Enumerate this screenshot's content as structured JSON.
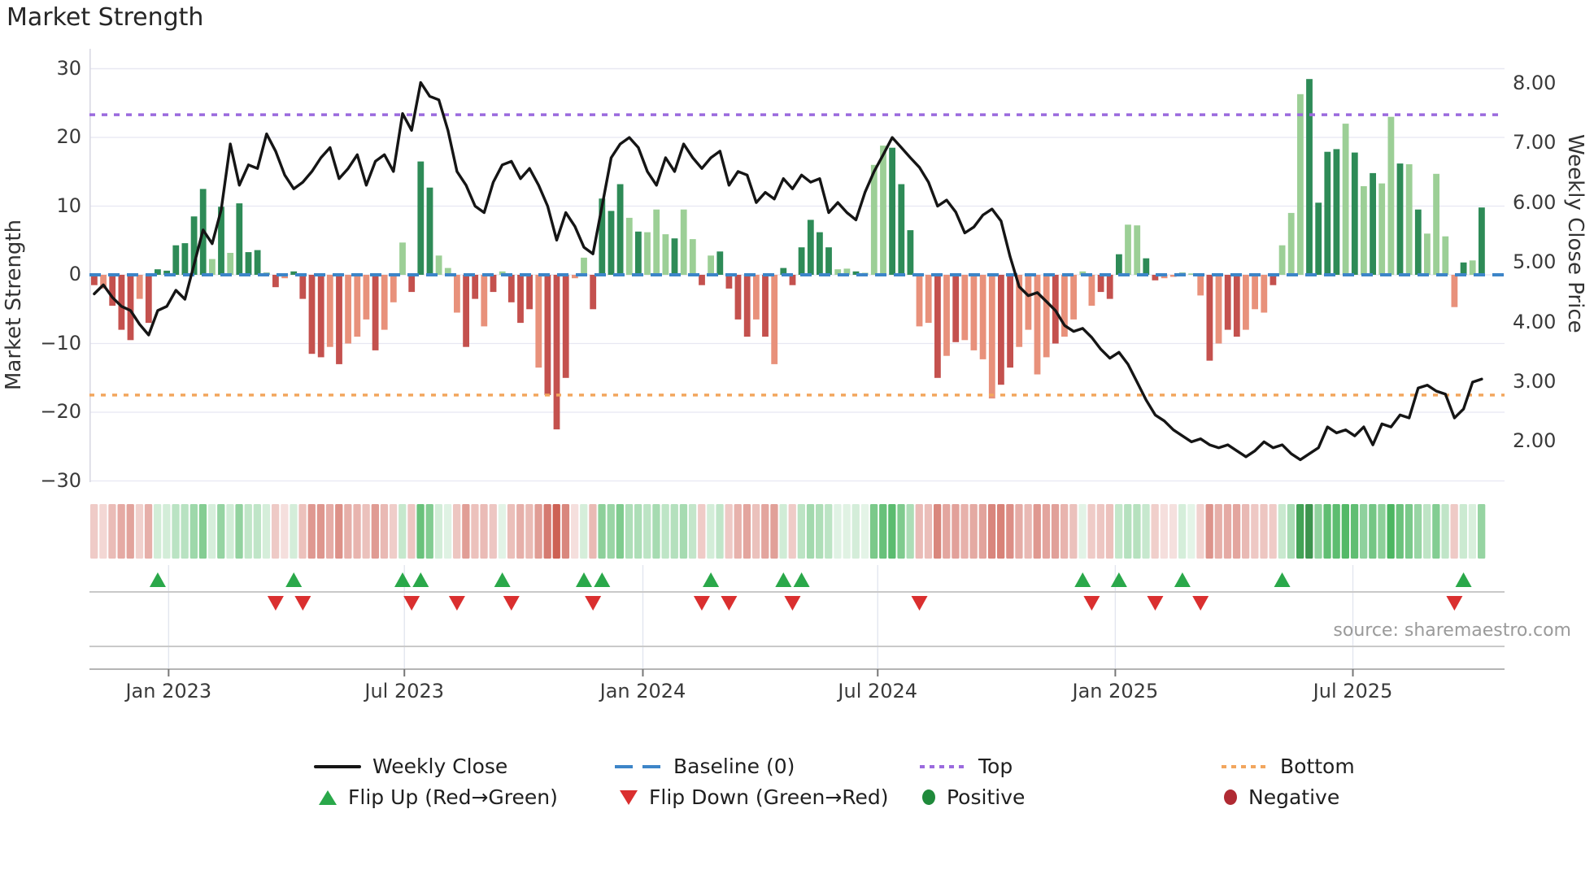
{
  "title": "Market Strength",
  "source_text": "source: sharemaestro.com",
  "axes": {
    "left_title": "Market Strength",
    "right_title": "Weekly Close Price",
    "left_ticks": [
      30,
      20,
      10,
      0,
      -10,
      -20,
      -30
    ],
    "right_ticks": [
      "8.00",
      "7.00",
      "6.00",
      "5.00",
      "4.00",
      "3.00",
      "2.00"
    ],
    "right_tick_values": [
      8,
      7,
      6,
      5,
      4,
      3,
      2
    ],
    "x_ticks": [
      {
        "label": "Jan 2023",
        "week": 8.2
      },
      {
        "label": "Jul 2023",
        "week": 34.2
      },
      {
        "label": "Jan 2024",
        "week": 60.5
      },
      {
        "label": "Jul 2024",
        "week": 86.4
      },
      {
        "label": "Jan 2025",
        "week": 112.6
      },
      {
        "label": "Jul 2025",
        "week": 138.8
      }
    ]
  },
  "legend": {
    "weekly_close": "Weekly Close",
    "baseline": "Baseline (0)",
    "top": "Top",
    "bottom": "Bottom",
    "flip_up": "Flip Up (Red→Green)",
    "flip_down": "Flip Down (Green→Red)",
    "positive": "Positive",
    "negative": "Negative"
  },
  "colors": {
    "bar_pos_dark": "#2e8b57",
    "bar_pos_light": "#9ccf96",
    "bar_neg_dark": "#c4514e",
    "bar_neg_light": "#e8917b",
    "line": "#151515",
    "baseline": "#3d85c8",
    "top_line": "#9b6ade",
    "bottom_line": "#f2a65e",
    "grid": "#e8e8f2",
    "marker_up": "#2aa84a",
    "marker_down": "#da2f2f",
    "legend_pos": "#1f8a3b",
    "legend_neg": "#b02a33"
  },
  "chart_data": {
    "type": "bar+line",
    "title": "Market Strength",
    "ylabel": "Market Strength",
    "y2label": "Weekly Close Price",
    "ylim": [
      -30,
      30
    ],
    "x_range": [
      "Nov 2022",
      "Oct 2025"
    ],
    "grid": true,
    "legend_position": "bottom",
    "levels": {
      "baseline": 0,
      "top": 23.3,
      "bottom": -17.5
    },
    "series": [
      {
        "name": "Market Strength (weekly bars)",
        "values": [
          -1.5,
          -2,
          -4.5,
          -8,
          -9.5,
          -3.5,
          -7,
          0.8,
          0.6,
          4.3,
          4.6,
          8.5,
          12.5,
          2.3,
          9.9,
          3.2,
          10.4,
          3.3,
          3.6,
          0.3,
          -1.8,
          -0.5,
          0.5,
          -3.5,
          -11.5,
          -12,
          -10.5,
          -13,
          -10,
          -9,
          -6.5,
          -11,
          -8,
          -4,
          4.7,
          -2.5,
          16.5,
          12.7,
          2.8,
          1,
          -5.5,
          -10.5,
          -3.5,
          -7.5,
          -2.5,
          0.5,
          -4,
          -7,
          -5,
          -13.5,
          -17.5,
          -22.5,
          -15,
          -0.5,
          2.5,
          -5,
          11.1,
          9.3,
          13.2,
          8.3,
          6.3,
          6.2,
          9.5,
          5.9,
          5.3,
          9.5,
          5.2,
          -1.5,
          2.8,
          3.4,
          -2,
          -6.5,
          -9,
          -6.5,
          -9,
          -13,
          1,
          -1.5,
          4,
          8,
          6.2,
          4,
          0.8,
          0.9,
          0.5,
          0.3,
          16,
          18.8,
          18.5,
          13.2,
          6.5,
          -7.5,
          -7,
          -15,
          -11.8,
          -9.8,
          -9.5,
          -11,
          -12.3,
          -18,
          -16,
          -13.5,
          -10.5,
          -8,
          -14.5,
          -12,
          -10,
          -9,
          -6.5,
          0.5,
          -4.5,
          -2.5,
          -3.5,
          3,
          7.3,
          7.2,
          2.4,
          -0.8,
          -0.5,
          -0.3,
          0.3,
          0.2,
          -3,
          -12.5,
          -10,
          -8,
          -9,
          -8,
          -5,
          -5.5,
          -1.5,
          4.3,
          9,
          26.3,
          28.5,
          10.5,
          17.9,
          18.3,
          22,
          17.8,
          12.9,
          14.8,
          13.3,
          23,
          16.2,
          16.1,
          9.5,
          6,
          14.7,
          5.6,
          -4.7,
          1.8,
          2.1,
          9.8
        ]
      },
      {
        "name": "Weekly Close",
        "values": [
          4.48,
          4.63,
          4.42,
          4.27,
          4.2,
          3.97,
          3.79,
          4.2,
          4.27,
          4.54,
          4.39,
          4.97,
          5.55,
          5.32,
          5.89,
          6.99,
          6.3,
          6.64,
          6.58,
          7.16,
          6.87,
          6.47,
          6.24,
          6.35,
          6.53,
          6.76,
          6.93,
          6.41,
          6.58,
          6.81,
          6.3,
          6.7,
          6.81,
          6.53,
          7.5,
          7.22,
          8.02,
          7.79,
          7.73,
          7.22,
          6.53,
          6.3,
          5.95,
          5.84,
          6.35,
          6.64,
          6.7,
          6.41,
          6.58,
          6.3,
          5.95,
          5.38,
          5.84,
          5.61,
          5.26,
          5.15,
          5.95,
          6.76,
          6.99,
          7.1,
          6.93,
          6.53,
          6.3,
          6.76,
          6.53,
          6.99,
          6.76,
          6.58,
          6.76,
          6.87,
          6.3,
          6.53,
          6.47,
          6.01,
          6.18,
          6.07,
          6.41,
          6.24,
          6.47,
          6.35,
          6.41,
          5.84,
          6.01,
          5.84,
          5.72,
          6.18,
          6.53,
          6.81,
          7.1,
          6.93,
          6.76,
          6.6,
          6.35,
          5.95,
          6.05,
          5.85,
          5.5,
          5.6,
          5.8,
          5.9,
          5.7,
          5.1,
          4.6,
          4.45,
          4.5,
          4.35,
          4.2,
          3.95,
          3.85,
          3.9,
          3.75,
          3.55,
          3.4,
          3.5,
          3.3,
          3.0,
          2.7,
          2.45,
          2.35,
          2.2,
          2.1,
          2.0,
          2.05,
          1.95,
          1.9,
          1.95,
          1.85,
          1.75,
          1.85,
          2.0,
          1.9,
          1.95,
          1.8,
          1.7,
          1.8,
          1.9,
          2.25,
          2.15,
          2.2,
          2.1,
          2.25,
          1.95,
          2.3,
          2.25,
          2.45,
          2.4,
          2.9,
          2.95,
          2.85,
          2.8,
          2.4,
          2.55,
          3.0,
          3.05
        ]
      }
    ],
    "bar_shades": "dldddldddddddldldddddlddddldllldllldddlllddldldddldddllddddldllldlldlddddldlddddddlldllldddlldldllllddlllldlllldddllddlldlldlddllldlllddddldldlldldlllldldddd"
  }
}
